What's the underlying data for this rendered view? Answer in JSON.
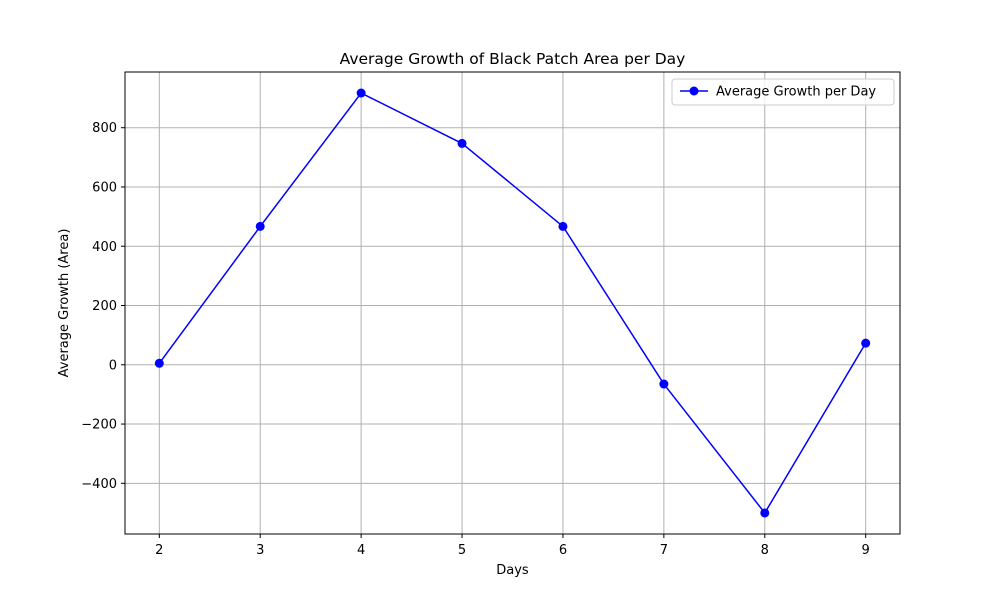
{
  "chart_data": {
    "type": "line",
    "title": "Average Growth of Black Patch Area per Day",
    "xlabel": "Days",
    "ylabel": "Average Growth (Area)",
    "x": [
      2,
      3,
      4,
      5,
      6,
      7,
      8,
      9
    ],
    "series": [
      {
        "name": "Average Growth per Day",
        "values": [
          5,
          467,
          917,
          747,
          467,
          -65,
          -500,
          73
        ],
        "color": "#0000ff",
        "marker": "circle"
      }
    ],
    "xlim": [
      1.66,
      9.34
    ],
    "ylim": [
      -571,
      988
    ],
    "xticks": [
      2,
      3,
      4,
      5,
      6,
      7,
      8,
      9
    ],
    "yticks": [
      -400,
      -200,
      0,
      200,
      400,
      600,
      800
    ],
    "ytick_labels": [
      "−400",
      "−200",
      "0",
      "200",
      "400",
      "600",
      "800"
    ],
    "grid": true,
    "legend_position": "top-right",
    "grid_color": "#b0b0b0"
  }
}
